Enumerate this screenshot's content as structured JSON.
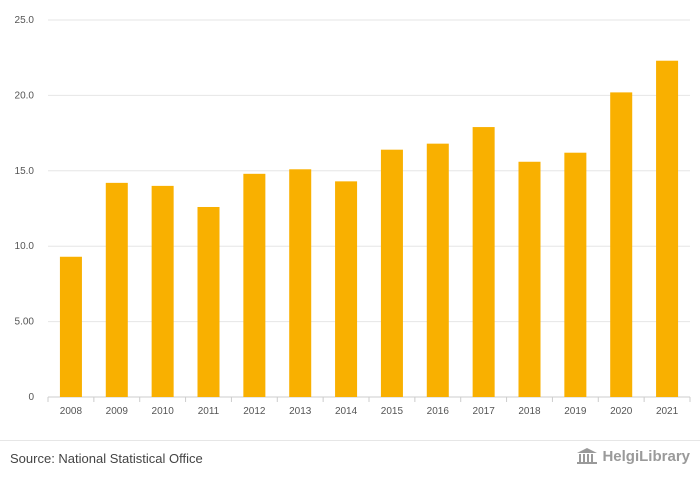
{
  "chart_data": {
    "type": "bar",
    "categories": [
      "2008",
      "2009",
      "2010",
      "2011",
      "2012",
      "2013",
      "2014",
      "2015",
      "2016",
      "2017",
      "2018",
      "2019",
      "2020",
      "2021"
    ],
    "values": [
      9.3,
      14.2,
      14.0,
      12.6,
      14.8,
      15.1,
      14.3,
      16.4,
      16.8,
      17.9,
      15.6,
      16.2,
      20.2,
      22.3
    ],
    "y_ticks": [
      0,
      5,
      10,
      15,
      20,
      25
    ],
    "y_tick_labels": [
      "0",
      "5.00",
      "10.0",
      "15.0",
      "20.0",
      "25.0"
    ],
    "ylim": [
      0,
      25
    ],
    "title": "",
    "xlabel": "",
    "ylabel": "",
    "grid": true,
    "bar_color": "#f9b000",
    "grid_color": "#e6e6e6"
  },
  "footer": {
    "source": "Source: National Statistical Office",
    "brand": "HelgiLibrary"
  }
}
